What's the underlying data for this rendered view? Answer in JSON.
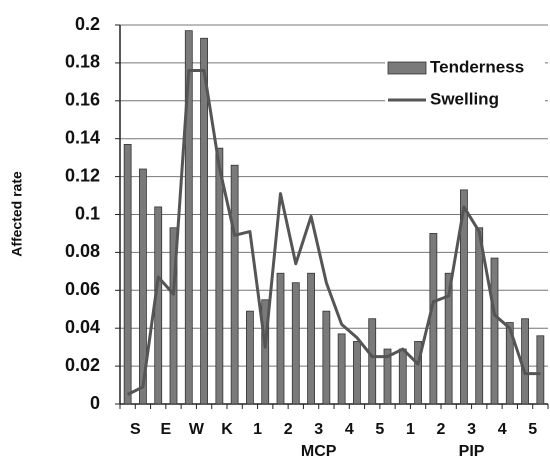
{
  "chart_data": {
    "type": "bar_line",
    "y_label": "Affected rate",
    "categories": [
      "S",
      null,
      "E",
      null,
      "W",
      null,
      "K",
      null,
      "1",
      null,
      "2",
      null,
      "3",
      null,
      "4",
      null,
      "5",
      null,
      "1",
      null,
      "2",
      null,
      "3",
      null,
      "4",
      null,
      "5",
      null
    ],
    "group_labels": [
      "MCP",
      "PIP"
    ],
    "series": [
      {
        "name": "Tenderness",
        "kind": "bar",
        "color": "#7a7a7a",
        "values": [
          0.137,
          0.124,
          0.104,
          0.093,
          0.197,
          0.193,
          0.135,
          0.126,
          0.049,
          0.055,
          0.069,
          0.064,
          0.069,
          0.049,
          0.037,
          0.033,
          0.045,
          0.029,
          0.029,
          0.033,
          0.09,
          0.069,
          0.113,
          0.093,
          0.077,
          0.043,
          0.045,
          0.036
        ]
      },
      {
        "name": "Swelling",
        "kind": "line",
        "color": "#555555",
        "values": [
          0.005,
          0.009,
          0.067,
          0.058,
          0.176,
          0.176,
          0.125,
          0.089,
          0.091,
          0.03,
          0.111,
          0.074,
          0.099,
          0.064,
          0.042,
          0.035,
          0.025,
          0.025,
          0.029,
          0.021,
          0.054,
          0.057,
          0.104,
          0.091,
          0.047,
          0.04,
          0.016,
          0.016
        ]
      }
    ],
    "ylim": [
      0,
      0.2
    ],
    "yticks": [
      0,
      0.02,
      0.04,
      0.06,
      0.08,
      0.1,
      0.12,
      0.14,
      0.16,
      0.18,
      0.2
    ],
    "grid": true
  }
}
